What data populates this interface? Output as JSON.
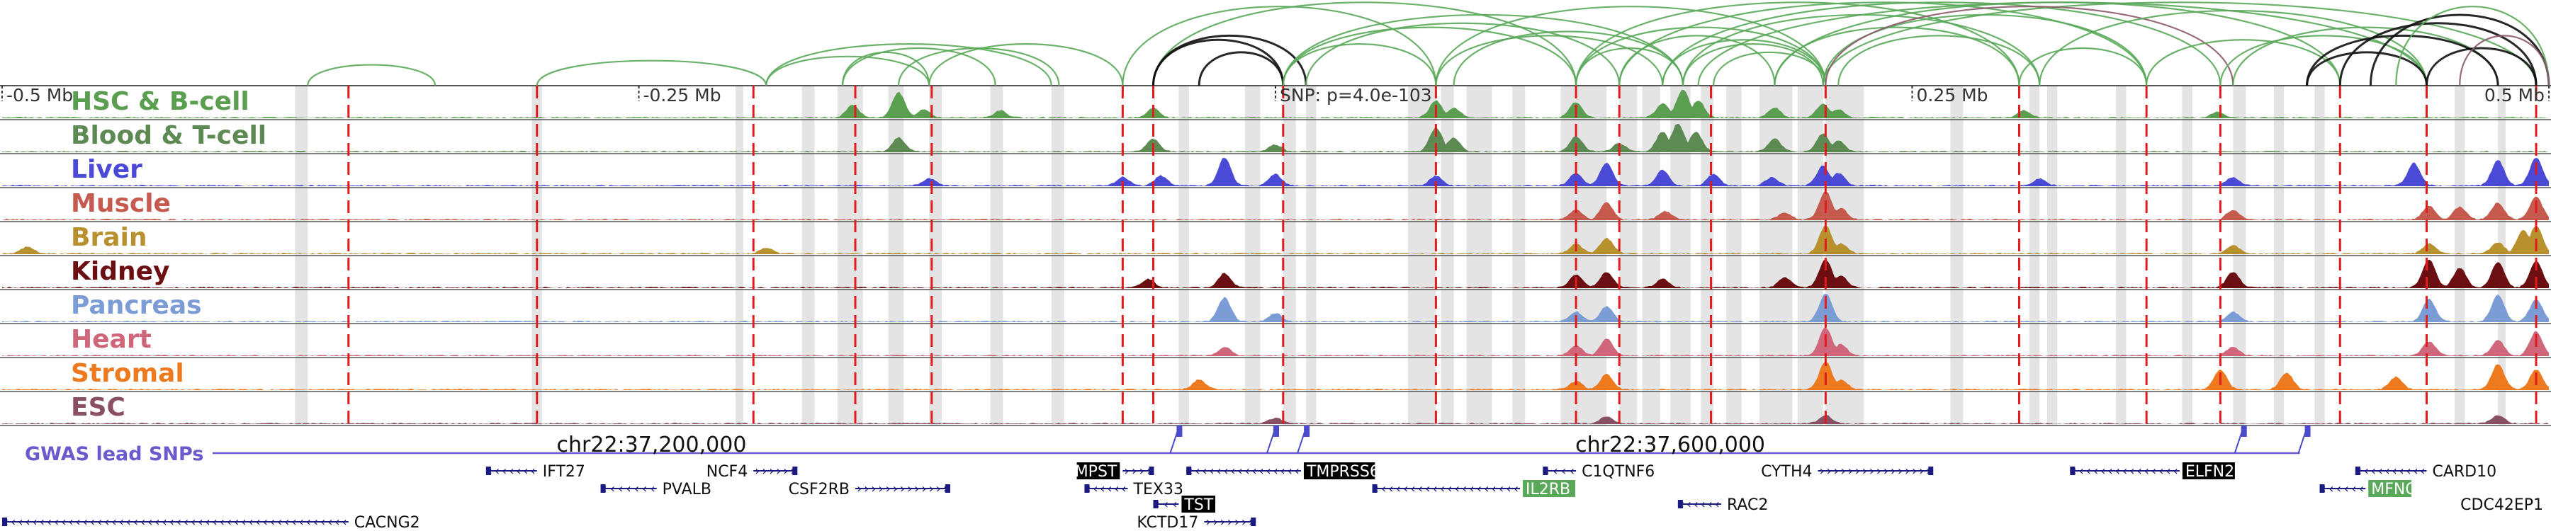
{
  "chart_data": {
    "type": "genome-browser",
    "title": "",
    "x_unit": "Mb relative to SNP",
    "xlim": [
      -0.5,
      0.5
    ],
    "axis_labels": [
      {
        "pos": -0.5,
        "text": "-0.5 Mb"
      },
      {
        "pos": -0.25,
        "text": "-0.25 Mb"
      },
      {
        "pos": 0.0,
        "text": "SNP: p=4.0e-103"
      },
      {
        "pos": 0.25,
        "text": "0.25 Mb"
      },
      {
        "pos": 0.5,
        "text": "0.5 Mb"
      }
    ],
    "coordinate_labels": [
      {
        "pos": -0.245,
        "text": "chr22:37,200,000"
      },
      {
        "pos": 0.155,
        "text": "chr22:37,600,000"
      }
    ],
    "gwas_label": "GWAS lead SNPs",
    "gwas_snps": [
      -0.038,
      0.0,
      0.012,
      0.38,
      0.405
    ],
    "red_lines": [
      -0.364,
      -0.29,
      -0.205,
      -0.165,
      -0.135,
      -0.06,
      -0.048,
      0.003,
      0.063,
      0.118,
      0.135,
      0.171,
      0.216,
      0.292,
      0.342,
      0.371,
      0.418,
      0.452,
      0.495
    ],
    "grey_bands": [
      [
        -0.385,
        -0.38
      ],
      [
        -0.292,
        -0.288
      ],
      [
        -0.212,
        -0.209
      ],
      [
        -0.186,
        -0.181
      ],
      [
        -0.172,
        -0.162
      ],
      [
        -0.152,
        -0.146
      ],
      [
        -0.136,
        -0.131
      ],
      [
        -0.112,
        -0.107
      ],
      [
        -0.088,
        -0.083
      ],
      [
        -0.038,
        -0.034
      ],
      [
        -0.012,
        -0.006
      ],
      [
        0.003,
        0.008
      ],
      [
        0.012,
        0.016
      ],
      [
        0.052,
        0.063
      ],
      [
        0.065,
        0.07
      ],
      [
        0.075,
        0.085
      ],
      [
        0.093,
        0.098
      ],
      [
        0.112,
        0.13
      ],
      [
        0.135,
        0.142
      ],
      [
        0.144,
        0.151
      ],
      [
        0.155,
        0.163
      ],
      [
        0.167,
        0.172
      ],
      [
        0.177,
        0.183
      ],
      [
        0.19,
        0.203
      ],
      [
        0.205,
        0.215
      ],
      [
        0.216,
        0.231
      ],
      [
        0.265,
        0.27
      ],
      [
        0.296,
        0.3
      ],
      [
        0.303,
        0.307
      ],
      [
        0.33,
        0.334
      ],
      [
        0.356,
        0.36
      ],
      [
        0.376,
        0.381
      ],
      [
        0.392,
        0.396
      ],
      [
        0.408,
        0.412
      ],
      [
        0.463,
        0.467
      ],
      [
        0.48,
        0.483
      ]
    ],
    "tracks": [
      {
        "name": "HSC & B-cell",
        "color": "#5a9e4f",
        "peaks": [
          [
            -0.166,
            0.45
          ],
          [
            -0.148,
            0.9
          ],
          [
            -0.138,
            0.3
          ],
          [
            -0.108,
            0.25
          ],
          [
            -0.048,
            0.35
          ],
          [
            0.063,
            0.6
          ],
          [
            0.07,
            0.35
          ],
          [
            0.118,
            0.55
          ],
          [
            0.152,
            0.5
          ],
          [
            0.16,
            1.0
          ],
          [
            0.166,
            0.6
          ],
          [
            0.196,
            0.35
          ],
          [
            0.215,
            0.5
          ],
          [
            0.221,
            0.3
          ],
          [
            0.294,
            0.25
          ],
          [
            0.37,
            0.2
          ]
        ]
      },
      {
        "name": "Blood & T-cell",
        "color": "#5d8a52",
        "peaks": [
          [
            -0.148,
            0.5
          ],
          [
            -0.048,
            0.45
          ],
          [
            0.0,
            0.25
          ],
          [
            0.063,
            0.85
          ],
          [
            0.07,
            0.5
          ],
          [
            0.118,
            0.55
          ],
          [
            0.135,
            0.3
          ],
          [
            0.152,
            0.7
          ],
          [
            0.158,
            1.0
          ],
          [
            0.165,
            0.7
          ],
          [
            0.196,
            0.45
          ],
          [
            0.215,
            0.65
          ],
          [
            0.221,
            0.4
          ]
        ]
      },
      {
        "name": "Liver",
        "color": "#4a4ad6",
        "peaks": [
          [
            -0.136,
            0.25
          ],
          [
            -0.06,
            0.3
          ],
          [
            -0.045,
            0.35
          ],
          [
            -0.02,
            1.0
          ],
          [
            0.0,
            0.4
          ],
          [
            0.063,
            0.35
          ],
          [
            0.118,
            0.45
          ],
          [
            0.13,
            0.8
          ],
          [
            0.152,
            0.55
          ],
          [
            0.172,
            0.4
          ],
          [
            0.195,
            0.3
          ],
          [
            0.215,
            0.7
          ],
          [
            0.221,
            0.45
          ],
          [
            0.3,
            0.25
          ],
          [
            0.376,
            0.3
          ],
          [
            0.447,
            0.8
          ],
          [
            0.48,
            0.9
          ],
          [
            0.495,
            1.0
          ]
        ]
      },
      {
        "name": "Muscle",
        "color": "#c75a4f",
        "peaks": [
          [
            0.118,
            0.35
          ],
          [
            0.13,
            0.6
          ],
          [
            0.153,
            0.3
          ],
          [
            0.2,
            0.25
          ],
          [
            0.216,
            1.0
          ],
          [
            0.222,
            0.4
          ],
          [
            0.376,
            0.35
          ],
          [
            0.453,
            0.5
          ],
          [
            0.465,
            0.45
          ],
          [
            0.48,
            0.6
          ],
          [
            0.495,
            0.8
          ]
        ]
      },
      {
        "name": "Brain",
        "color": "#b8902e",
        "peaks": [
          [
            -0.49,
            0.25
          ],
          [
            -0.2,
            0.2
          ],
          [
            0.118,
            0.35
          ],
          [
            0.13,
            0.55
          ],
          [
            0.216,
            1.0
          ],
          [
            0.222,
            0.35
          ],
          [
            0.376,
            0.3
          ],
          [
            0.453,
            0.35
          ],
          [
            0.48,
            0.4
          ],
          [
            0.49,
            0.85
          ],
          [
            0.495,
            1.0
          ]
        ]
      },
      {
        "name": "Kidney",
        "color": "#6b0f12",
        "peaks": [
          [
            -0.05,
            0.3
          ],
          [
            -0.02,
            0.5
          ],
          [
            0.118,
            0.45
          ],
          [
            0.13,
            0.55
          ],
          [
            0.152,
            0.3
          ],
          [
            0.2,
            0.35
          ],
          [
            0.216,
            1.0
          ],
          [
            0.222,
            0.4
          ],
          [
            0.376,
            0.55
          ],
          [
            0.453,
            1.0
          ],
          [
            0.465,
            0.7
          ],
          [
            0.48,
            0.9
          ],
          [
            0.495,
            0.95
          ]
        ]
      },
      {
        "name": "Pancreas",
        "color": "#7c9cd6",
        "peaks": [
          [
            -0.02,
            0.85
          ],
          [
            0.0,
            0.3
          ],
          [
            0.118,
            0.35
          ],
          [
            0.13,
            0.55
          ],
          [
            0.216,
            1.0
          ],
          [
            0.376,
            0.35
          ],
          [
            0.453,
            0.8
          ],
          [
            0.48,
            0.95
          ],
          [
            0.495,
            0.8
          ]
        ]
      },
      {
        "name": "Heart",
        "color": "#d0667a",
        "peaks": [
          [
            -0.02,
            0.3
          ],
          [
            0.118,
            0.35
          ],
          [
            0.13,
            0.6
          ],
          [
            0.216,
            1.0
          ],
          [
            0.222,
            0.4
          ],
          [
            0.376,
            0.3
          ],
          [
            0.453,
            0.5
          ],
          [
            0.48,
            0.55
          ],
          [
            0.495,
            0.85
          ]
        ]
      },
      {
        "name": "Stromal",
        "color": "#ee7a1f",
        "peaks": [
          [
            -0.03,
            0.35
          ],
          [
            0.118,
            0.3
          ],
          [
            0.13,
            0.55
          ],
          [
            0.216,
            1.0
          ],
          [
            0.222,
            0.35
          ],
          [
            0.371,
            0.7
          ],
          [
            0.397,
            0.6
          ],
          [
            0.44,
            0.45
          ],
          [
            0.48,
            0.9
          ],
          [
            0.495,
            0.7
          ]
        ]
      },
      {
        "name": "ESC",
        "color": "#8a4f63",
        "peaks": [
          [
            0.0,
            0.2
          ],
          [
            0.13,
            0.25
          ],
          [
            0.216,
            0.3
          ],
          [
            0.48,
            0.3
          ]
        ]
      }
    ],
    "loops": [
      {
        "from": -0.38,
        "to": -0.33,
        "color": "#5aa85a",
        "h": 0.25
      },
      {
        "from": -0.29,
        "to": -0.2,
        "color": "#5aa85a",
        "h": 0.3
      },
      {
        "from": -0.2,
        "to": -0.136,
        "color": "#5aa85a",
        "h": 0.35
      },
      {
        "from": -0.2,
        "to": -0.088,
        "color": "#5aa85a",
        "h": 0.5
      },
      {
        "from": -0.17,
        "to": -0.136,
        "color": "#5aa85a",
        "h": 0.4
      },
      {
        "from": -0.17,
        "to": -0.11,
        "color": "#5aa85a",
        "h": 0.45
      },
      {
        "from": -0.148,
        "to": -0.085,
        "color": "#5aa85a",
        "h": 0.45
      },
      {
        "from": -0.136,
        "to": -0.06,
        "color": "#5aa85a",
        "h": 0.5
      },
      {
        "from": -0.06,
        "to": 0.063,
        "color": "#5aa85a",
        "h": 0.95
      },
      {
        "from": -0.048,
        "to": 0.118,
        "color": "#5aa85a",
        "h": 1.0
      },
      {
        "from": -0.048,
        "to": 0.003,
        "color": "#111111",
        "h": 0.55
      },
      {
        "from": -0.048,
        "to": 0.012,
        "color": "#111111",
        "h": 0.6
      },
      {
        "from": -0.03,
        "to": 0.003,
        "color": "#111111",
        "h": 0.4
      },
      {
        "from": 0.003,
        "to": 0.063,
        "color": "#5aa85a",
        "h": 0.5
      },
      {
        "from": 0.003,
        "to": 0.118,
        "color": "#5aa85a",
        "h": 0.7
      },
      {
        "from": 0.003,
        "to": 0.16,
        "color": "#5aa85a",
        "h": 0.85
      },
      {
        "from": 0.012,
        "to": 0.135,
        "color": "#5aa85a",
        "h": 0.75
      },
      {
        "from": 0.063,
        "to": 0.152,
        "color": "#5aa85a",
        "h": 0.6
      },
      {
        "from": 0.063,
        "to": 0.216,
        "color": "#5aa85a",
        "h": 0.95
      },
      {
        "from": 0.07,
        "to": 0.16,
        "color": "#5aa85a",
        "h": 0.65
      },
      {
        "from": 0.118,
        "to": 0.16,
        "color": "#5aa85a",
        "h": 0.45
      },
      {
        "from": 0.118,
        "to": 0.216,
        "color": "#5aa85a",
        "h": 0.7
      },
      {
        "from": 0.118,
        "to": 0.292,
        "color": "#5aa85a",
        "h": 1.0
      },
      {
        "from": 0.135,
        "to": 0.196,
        "color": "#5aa85a",
        "h": 0.6
      },
      {
        "from": 0.135,
        "to": 0.342,
        "color": "#5aa85a",
        "h": 1.0
      },
      {
        "from": 0.152,
        "to": 0.216,
        "color": "#5aa85a",
        "h": 0.55
      },
      {
        "from": 0.152,
        "to": 0.371,
        "color": "#5aa85a",
        "h": 1.0
      },
      {
        "from": 0.16,
        "to": 0.215,
        "color": "#5aa85a",
        "h": 0.5
      },
      {
        "from": 0.16,
        "to": 0.3,
        "color": "#5aa85a",
        "h": 0.85
      },
      {
        "from": 0.166,
        "to": 0.452,
        "color": "#5aa85a",
        "h": 1.0
      },
      {
        "from": 0.172,
        "to": 0.216,
        "color": "#5aa85a",
        "h": 0.4
      },
      {
        "from": 0.196,
        "to": 0.292,
        "color": "#5aa85a",
        "h": 0.7
      },
      {
        "from": 0.196,
        "to": 0.418,
        "color": "#5aa85a",
        "h": 1.0
      },
      {
        "from": 0.215,
        "to": 0.342,
        "color": "#5aa85a",
        "h": 0.85
      },
      {
        "from": 0.215,
        "to": 0.495,
        "color": "#5aa85a",
        "h": 1.0
      },
      {
        "from": 0.216,
        "to": 0.376,
        "color": "#8b5a6a",
        "h": 0.95
      },
      {
        "from": 0.221,
        "to": 0.3,
        "color": "#5aa85a",
        "h": 0.6
      },
      {
        "from": 0.292,
        "to": 0.342,
        "color": "#5aa85a",
        "h": 0.45
      },
      {
        "from": 0.3,
        "to": 0.452,
        "color": "#5aa85a",
        "h": 0.9
      },
      {
        "from": 0.342,
        "to": 0.418,
        "color": "#5aa85a",
        "h": 0.55
      },
      {
        "from": 0.371,
        "to": 0.452,
        "color": "#5aa85a",
        "h": 0.6
      },
      {
        "from": 0.376,
        "to": 0.48,
        "color": "#5aa85a",
        "h": 0.7
      },
      {
        "from": 0.405,
        "to": 0.452,
        "color": "#111111",
        "h": 0.4
      },
      {
        "from": 0.405,
        "to": 0.48,
        "color": "#111111",
        "h": 0.6
      },
      {
        "from": 0.418,
        "to": 0.495,
        "color": "#111111",
        "h": 0.75
      },
      {
        "from": 0.452,
        "to": 0.495,
        "color": "#111111",
        "h": 0.45
      },
      {
        "from": 0.43,
        "to": 0.5,
        "color": "#111111",
        "h": 0.85
      },
      {
        "from": 0.44,
        "to": 0.5,
        "color": "#5aa85a",
        "h": 0.95
      },
      {
        "from": 0.465,
        "to": 0.5,
        "color": "#8b5a6a",
        "h": 0.6
      }
    ],
    "genes": [
      {
        "name": "IFT27",
        "start": -0.31,
        "end": -0.29,
        "strand": "-",
        "row": 0,
        "label": "right",
        "hl": ""
      },
      {
        "name": "NCF4",
        "start": -0.205,
        "end": -0.188,
        "strand": "+",
        "row": 0,
        "label": "left",
        "hl": ""
      },
      {
        "name": "MPST",
        "start": -0.06,
        "end": -0.048,
        "strand": "+",
        "row": 0,
        "label": "left",
        "hl": "black"
      },
      {
        "name": "TMPRSS6",
        "start": -0.035,
        "end": 0.01,
        "strand": "-",
        "row": 0,
        "label": "right",
        "hl": "black"
      },
      {
        "name": "C1QTNF6",
        "start": 0.105,
        "end": 0.118,
        "strand": "-",
        "row": 0,
        "label": "right",
        "hl": ""
      },
      {
        "name": "CYTH4",
        "start": 0.213,
        "end": 0.258,
        "strand": "+",
        "row": 0,
        "label": "left",
        "hl": ""
      },
      {
        "name": "ELFN2",
        "start": 0.312,
        "end": 0.355,
        "strand": "-",
        "row": 0,
        "label": "right",
        "hl": "black"
      },
      {
        "name": "CARD10",
        "start": 0.424,
        "end": 0.452,
        "strand": "-",
        "row": 0,
        "label": "right",
        "hl": ""
      },
      {
        "name": "PVALB",
        "start": -0.265,
        "end": -0.243,
        "strand": "-",
        "row": 1,
        "label": "right",
        "hl": ""
      },
      {
        "name": "CSF2RB",
        "start": -0.165,
        "end": -0.128,
        "strand": "+",
        "row": 1,
        "label": "left",
        "hl": ""
      },
      {
        "name": "TEX33",
        "start": -0.075,
        "end": -0.058,
        "strand": "-",
        "row": 1,
        "label": "right",
        "hl": ""
      },
      {
        "name": "IL2RB",
        "start": 0.038,
        "end": 0.096,
        "strand": "-",
        "row": 1,
        "label": "right",
        "hl": "green"
      },
      {
        "name": "MFNG",
        "start": 0.41,
        "end": 0.428,
        "strand": "-",
        "row": 1,
        "label": "right",
        "hl": "green"
      },
      {
        "name": "TST",
        "start": -0.048,
        "end": -0.038,
        "strand": "-",
        "row": 2,
        "label": "right",
        "hl": "black"
      },
      {
        "name": "RAC2",
        "start": 0.158,
        "end": 0.175,
        "strand": "-",
        "row": 2,
        "label": "right",
        "hl": ""
      },
      {
        "name": "CDC42EP1",
        "start": 0.5,
        "end": 0.5,
        "strand": "+",
        "row": 2,
        "label": "left",
        "hl": ""
      },
      {
        "name": "CACNG2",
        "start": -0.5,
        "end": -0.364,
        "strand": "-",
        "row": 3,
        "label": "right",
        "hl": ""
      },
      {
        "name": "KCTD17",
        "start": -0.028,
        "end": -0.008,
        "strand": "+",
        "row": 3,
        "label": "left",
        "hl": ""
      }
    ]
  }
}
